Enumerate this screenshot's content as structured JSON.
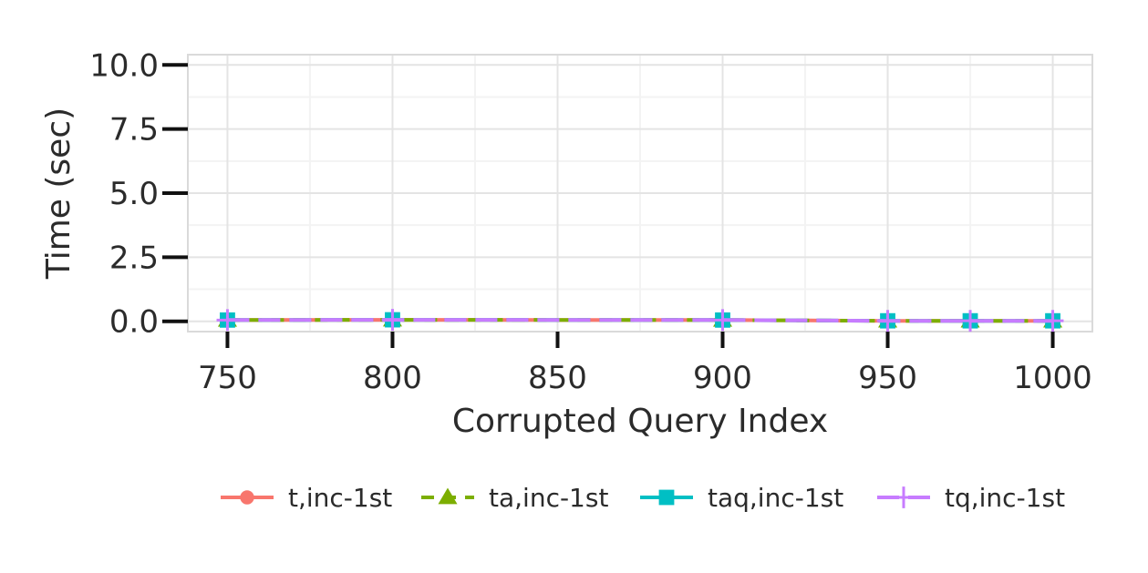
{
  "chart_data": {
    "type": "line",
    "xlabel": "Corrupted Query Index",
    "ylabel": "Time (sec)",
    "x": [
      750,
      800,
      900,
      950,
      975,
      1000
    ],
    "xticks": [
      750,
      800,
      850,
      900,
      950,
      1000
    ],
    "xtick_labels": [
      "750",
      "800",
      "850",
      "900",
      "950",
      "1000"
    ],
    "yticks": [
      0,
      2.5,
      5,
      7.5,
      10
    ],
    "ytick_labels": [
      "0.0",
      "2.5",
      "5.0",
      "7.5",
      "10.0"
    ],
    "xlim": [
      738,
      1012
    ],
    "ylim": [
      -0.4,
      10.4
    ],
    "grid": true,
    "legend_position": "bottom",
    "series": [
      {
        "name": "t,inc-1st",
        "color": "#F8766D",
        "marker": "circle",
        "dash": "solid",
        "values": [
          0.05,
          0.06,
          0.05,
          0.02,
          0.02,
          0.02
        ]
      },
      {
        "name": "ta,inc-1st",
        "color": "#7CAE00",
        "marker": "triangle",
        "dash": "dashed",
        "values": [
          0.05,
          0.06,
          0.05,
          0.02,
          0.02,
          0.02
        ]
      },
      {
        "name": "taq,inc-1st",
        "color": "#00BFC4",
        "marker": "square",
        "dash": "longdash",
        "values": [
          0.05,
          0.06,
          0.05,
          0.02,
          0.02,
          0.02
        ]
      },
      {
        "name": "tq,inc-1st",
        "color": "#C77CFF",
        "marker": "plus",
        "dash": "longdash",
        "values": [
          0.05,
          0.06,
          0.05,
          0.02,
          0.02,
          0.02
        ]
      }
    ]
  }
}
